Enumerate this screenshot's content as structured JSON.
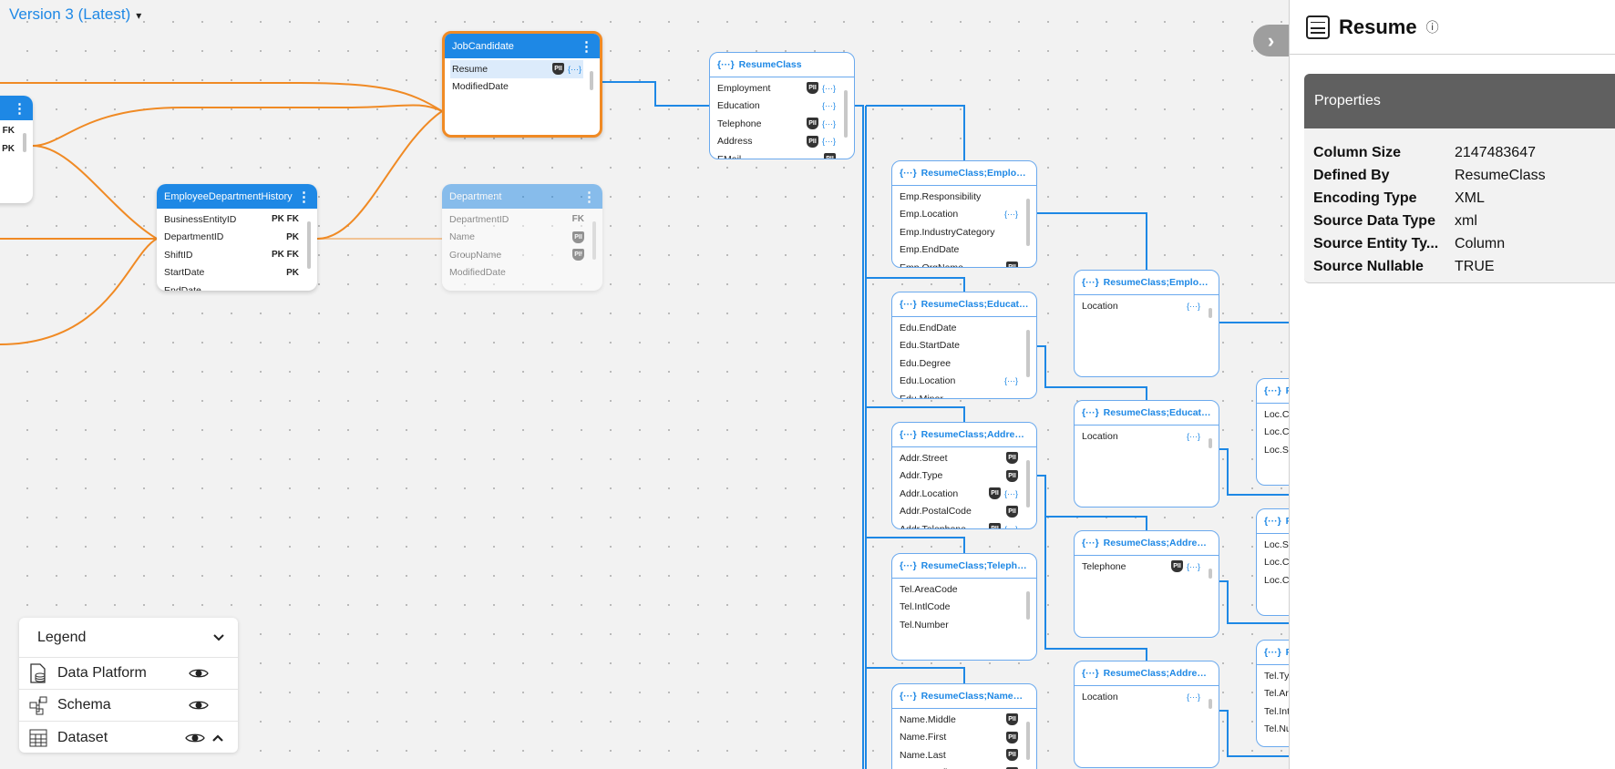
{
  "version_selector": {
    "label": "Version 3 (Latest)",
    "caret": "▾"
  },
  "tables": [
    {
      "id": "left",
      "title": "",
      "rows": [
        {
          "name": "",
          "keys": "FK"
        },
        {
          "name": "",
          "keys": "PK"
        }
      ]
    },
    {
      "id": "jobcandidate",
      "title": "JobCandidate",
      "selected": true,
      "rows": [
        {
          "name": "Resume",
          "pii": true,
          "obj": true,
          "highlight": true
        },
        {
          "name": "ModifiedDate"
        }
      ]
    },
    {
      "id": "edh",
      "title": "EmployeeDepartmentHistory",
      "rows": [
        {
          "name": "BusinessEntityID",
          "keys": "PK FK"
        },
        {
          "name": "DepartmentID",
          "keys": "PK"
        },
        {
          "name": "ShiftID",
          "keys": "PK FK"
        },
        {
          "name": "StartDate",
          "keys": "PK"
        },
        {
          "name": "EndDate"
        }
      ]
    },
    {
      "id": "department",
      "title": "Department",
      "faded": true,
      "rows": [
        {
          "name": "DepartmentID",
          "keys": "FK"
        },
        {
          "name": "Name",
          "pii": true
        },
        {
          "name": "GroupName",
          "pii": true
        },
        {
          "name": "ModifiedDate"
        }
      ]
    }
  ],
  "classes": [
    {
      "title": "ResumeClass",
      "rows": [
        {
          "name": "Employment",
          "pii": true,
          "obj": true
        },
        {
          "name": "Education",
          "obj": true
        },
        {
          "name": "Telephone",
          "pii": true,
          "obj": true
        },
        {
          "name": "Address",
          "pii": true,
          "obj": true
        },
        {
          "name": "EMail",
          "pii": true
        }
      ]
    },
    {
      "title": "ResumeClass;Employm...",
      "rows": [
        {
          "name": "Emp.Responsibility"
        },
        {
          "name": "Emp.Location",
          "obj": true
        },
        {
          "name": "Emp.IndustryCategory"
        },
        {
          "name": "Emp.EndDate"
        },
        {
          "name": "Emp.OrgName",
          "pii": true
        }
      ]
    },
    {
      "title": "ResumeClass;Educatio...",
      "rows": [
        {
          "name": "Edu.EndDate"
        },
        {
          "name": "Edu.StartDate"
        },
        {
          "name": "Edu.Degree"
        },
        {
          "name": "Edu.Location",
          "obj": true
        },
        {
          "name": "Edu.Minor"
        }
      ]
    },
    {
      "title": "ResumeClass;AddressC...",
      "rows": [
        {
          "name": "Addr.Street",
          "pii": true
        },
        {
          "name": "Addr.Type",
          "pii": true
        },
        {
          "name": "Addr.Location",
          "pii": true,
          "obj": true
        },
        {
          "name": "Addr.PostalCode",
          "pii": true
        },
        {
          "name": "Addr.Telephone",
          "pii": true,
          "obj": true
        }
      ]
    },
    {
      "title": "ResumeClass;Telephon...",
      "rows": [
        {
          "name": "Tel.AreaCode"
        },
        {
          "name": "Tel.IntlCode"
        },
        {
          "name": "Tel.Number"
        }
      ]
    },
    {
      "title": "ResumeClass;NameClass",
      "rows": [
        {
          "name": "Name.Middle",
          "pii": true
        },
        {
          "name": "Name.First",
          "pii": true
        },
        {
          "name": "Name.Last",
          "pii": true
        },
        {
          "name": "Name.Prefix",
          "pii": true
        }
      ]
    },
    {
      "title": "ResumeClass;Employm...",
      "rows": [
        {
          "name": "Location",
          "obj": true
        }
      ]
    },
    {
      "title": "ResumeClass;Educatio...",
      "rows": [
        {
          "name": "Location",
          "obj": true
        }
      ]
    },
    {
      "title": "ResumeClass;AddressC...",
      "rows": [
        {
          "name": "Telephone",
          "pii": true,
          "obj": true
        }
      ]
    },
    {
      "title": "ResumeClass;AddressC...",
      "rows": [
        {
          "name": "Location",
          "obj": true
        }
      ]
    },
    {
      "title": "Re",
      "rows": [
        {
          "name": "Loc.Co"
        },
        {
          "name": "Loc.Ci"
        },
        {
          "name": "Loc.St"
        }
      ]
    },
    {
      "title": "Re",
      "rows": [
        {
          "name": "Loc.St"
        },
        {
          "name": "Loc.Co"
        },
        {
          "name": "Loc.Ci"
        }
      ]
    },
    {
      "title": "Re",
      "rows": [
        {
          "name": "Tel.Typ"
        },
        {
          "name": "Tel.Are"
        },
        {
          "name": "Tel.Intl"
        },
        {
          "name": "Tel.Nu"
        }
      ]
    }
  ],
  "badges": {
    "pii": "PII",
    "obj": "{···}",
    "menu": "⋮"
  },
  "panel": {
    "icon": "table-icon",
    "title": "Resume",
    "info_icon": "ⓘ",
    "collapse_icon": "›",
    "section_title": "Properties",
    "properties": [
      {
        "label": "Column Size",
        "value": "2147483647"
      },
      {
        "label": "Defined By",
        "value": "ResumeClass"
      },
      {
        "label": "Encoding Type",
        "value": "XML"
      },
      {
        "label": "Source Data Type",
        "value": "xml"
      },
      {
        "label": "Source Entity Ty...",
        "value": "Column"
      },
      {
        "label": "Source Nullable",
        "value": "TRUE"
      }
    ]
  },
  "legend": {
    "title": "Legend",
    "items": [
      {
        "label": "Data Platform",
        "icon": "data-platform-icon"
      },
      {
        "label": "Schema",
        "icon": "schema-icon"
      },
      {
        "label": "Dataset",
        "icon": "dataset-icon"
      }
    ]
  },
  "colors": {
    "accent": "#1e88e5",
    "selected": "#f08a24",
    "lineage_blue": "#1e88e5",
    "lineage_orange": "#f08a24",
    "panel_header": "#606060"
  }
}
